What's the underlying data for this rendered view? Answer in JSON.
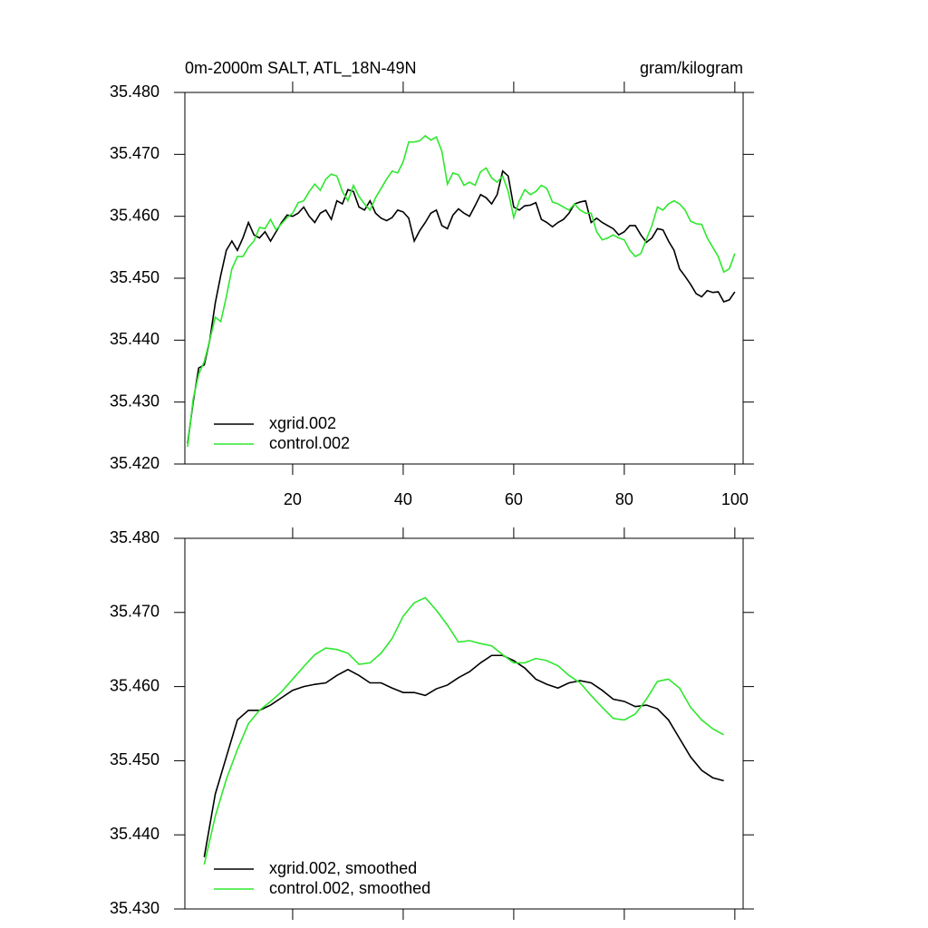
{
  "chart_data": [
    {
      "type": "line",
      "title": "0m-2000m SALT, ATL_18N-49N",
      "units": "gram/kilogram",
      "x": [
        1,
        2,
        3,
        4,
        5,
        6,
        7,
        8,
        9,
        10,
        11,
        12,
        13,
        14,
        15,
        16,
        17,
        18,
        19,
        20,
        21,
        22,
        23,
        24,
        25,
        26,
        27,
        28,
        29,
        30,
        31,
        32,
        33,
        34,
        35,
        36,
        37,
        38,
        39,
        40,
        41,
        42,
        43,
        44,
        45,
        46,
        47,
        48,
        49,
        50,
        51,
        52,
        53,
        54,
        55,
        56,
        57,
        58,
        59,
        60,
        61,
        62,
        63,
        64,
        65,
        66,
        67,
        68,
        69,
        70,
        71,
        72,
        73,
        74,
        75,
        76,
        77,
        78,
        79,
        80,
        81,
        82,
        83,
        84,
        85,
        86,
        87,
        88,
        89,
        90,
        91,
        92,
        93,
        94,
        95,
        96,
        97,
        98,
        99,
        100
      ],
      "series": [
        {
          "name": "xgrid.002",
          "color": "#000000",
          "values": [
            35.4233,
            35.43,
            35.4355,
            35.436,
            35.44,
            35.446,
            35.4505,
            35.4545,
            35.456,
            35.4545,
            35.4565,
            35.459,
            35.457,
            35.4565,
            35.4575,
            35.456,
            35.4575,
            35.459,
            35.4602,
            35.46,
            35.4605,
            35.4615,
            35.46,
            35.459,
            35.4605,
            35.461,
            35.4595,
            35.4625,
            35.462,
            35.4643,
            35.464,
            35.4615,
            35.461,
            35.4625,
            35.4605,
            35.4597,
            35.4593,
            35.4598,
            35.461,
            35.4607,
            35.4597,
            35.456,
            35.4577,
            35.459,
            35.4605,
            35.461,
            35.4585,
            35.458,
            35.4602,
            35.4612,
            35.4605,
            35.46,
            35.4617,
            35.4635,
            35.463,
            35.462,
            35.4635,
            35.4673,
            35.4665,
            35.4615,
            35.461,
            35.4617,
            35.4618,
            35.4622,
            35.4595,
            35.459,
            35.4583,
            35.459,
            35.4595,
            35.4605,
            35.462,
            35.4623,
            35.4625,
            35.459,
            35.4597,
            35.459,
            35.4585,
            35.458,
            35.457,
            35.4575,
            35.4585,
            35.4585,
            35.457,
            35.4558,
            35.4565,
            35.458,
            35.4578,
            35.456,
            35.4545,
            35.4515,
            35.4503,
            35.449,
            35.4475,
            35.447,
            35.448,
            35.4477,
            35.4478,
            35.4462,
            35.4465,
            35.4478
          ]
        },
        {
          "name": "control.002",
          "color": "#2ee82e",
          "values": [
            35.4228,
            35.4305,
            35.4345,
            35.4365,
            35.44,
            35.4437,
            35.443,
            35.447,
            35.4515,
            35.4535,
            35.4535,
            35.455,
            35.456,
            35.4582,
            35.458,
            35.4595,
            35.4578,
            35.4588,
            35.4598,
            35.4605,
            35.4622,
            35.4625,
            35.464,
            35.4652,
            35.4642,
            35.466,
            35.4668,
            35.4665,
            35.464,
            35.4625,
            35.465,
            35.4632,
            35.462,
            35.461,
            35.463,
            35.4645,
            35.466,
            35.4673,
            35.467,
            35.4688,
            35.472,
            35.472,
            35.4722,
            35.473,
            35.4723,
            35.4728,
            35.4705,
            35.4652,
            35.467,
            35.4667,
            35.465,
            35.4655,
            35.465,
            35.4672,
            35.4678,
            35.4662,
            35.4655,
            35.4665,
            35.464,
            35.4598,
            35.4625,
            35.4643,
            35.4635,
            35.464,
            35.465,
            35.4645,
            35.4623,
            35.462,
            35.4615,
            35.461,
            35.462,
            35.461,
            35.4605,
            35.4605,
            35.4575,
            35.4562,
            35.4565,
            35.457,
            35.4565,
            35.4562,
            35.4545,
            35.4535,
            35.454,
            35.4563,
            35.4585,
            35.4615,
            35.461,
            35.462,
            35.4625,
            35.462,
            35.461,
            35.4592,
            35.4588,
            35.4587,
            35.4565,
            35.455,
            35.4535,
            35.451,
            35.4515,
            35.454
          ]
        }
      ],
      "xlim": [
        0.5,
        101.5
      ],
      "xticks": [
        20,
        40,
        60,
        80,
        100
      ],
      "xtick_labels": true,
      "ylim": [
        35.42,
        35.48
      ],
      "yticks": [
        {
          "value": 35.42,
          "label": "35.420"
        },
        {
          "value": 35.43,
          "label": "35.430"
        },
        {
          "value": 35.44,
          "label": "35.440"
        },
        {
          "value": 35.45,
          "label": "35.450"
        },
        {
          "value": 35.46,
          "label": "35.460"
        },
        {
          "value": 35.47,
          "label": "35.470"
        },
        {
          "value": 35.48,
          "label": "35.480"
        }
      ],
      "legend": "lower left"
    },
    {
      "type": "line",
      "x": [
        4,
        6,
        8,
        10,
        12,
        14,
        16,
        18,
        20,
        22,
        24,
        26,
        28,
        30,
        32,
        34,
        36,
        38,
        40,
        42,
        44,
        46,
        48,
        50,
        52,
        54,
        56,
        58,
        60,
        62,
        64,
        66,
        68,
        70,
        72,
        74,
        76,
        78,
        80,
        82,
        84,
        86,
        88,
        90,
        92,
        94,
        96,
        98
      ],
      "series": [
        {
          "name": "xgrid.002, smoothed",
          "color": "#000000",
          "values": [
            35.437,
            35.4455,
            35.4505,
            35.4555,
            35.4568,
            35.4568,
            35.4575,
            35.4585,
            35.4595,
            35.46,
            35.4603,
            35.4605,
            35.4615,
            35.4623,
            35.4615,
            35.4605,
            35.4605,
            35.4598,
            35.4592,
            35.4592,
            35.4588,
            35.4597,
            35.4602,
            35.4612,
            35.462,
            35.4632,
            35.4642,
            35.4642,
            35.4635,
            35.4625,
            35.461,
            35.4603,
            35.4598,
            35.4605,
            35.4608,
            35.4605,
            35.4595,
            35.4583,
            35.458,
            35.4573,
            35.4575,
            35.457,
            35.4555,
            35.453,
            35.4505,
            35.4487,
            35.4477,
            35.4473
          ]
        },
        {
          "name": "control.002, smoothed",
          "color": "#2ee82e",
          "values": [
            35.436,
            35.4425,
            35.4475,
            35.4515,
            35.455,
            35.4568,
            35.458,
            35.4593,
            35.461,
            35.4627,
            35.4643,
            35.4652,
            35.465,
            35.4645,
            35.463,
            35.4632,
            35.4645,
            35.4665,
            35.4695,
            35.4713,
            35.472,
            35.4703,
            35.4683,
            35.466,
            35.4662,
            35.4658,
            35.4655,
            35.4643,
            35.4632,
            35.4632,
            35.4638,
            35.4635,
            35.4628,
            35.4615,
            35.4605,
            35.4588,
            35.4572,
            35.4557,
            35.4555,
            35.4563,
            35.4583,
            35.4607,
            35.461,
            35.4598,
            35.4572,
            35.4555,
            35.4543,
            35.4535
          ]
        }
      ],
      "xlim": [
        0.5,
        101.5
      ],
      "xticks": [
        20,
        40,
        60,
        80,
        100
      ],
      "xtick_labels": false,
      "ylim": [
        35.43,
        35.48
      ],
      "yticks": [
        {
          "value": 35.43,
          "label": "35.430"
        },
        {
          "value": 35.44,
          "label": "35.440"
        },
        {
          "value": 35.45,
          "label": "35.450"
        },
        {
          "value": 35.46,
          "label": "35.460"
        },
        {
          "value": 35.47,
          "label": "35.470"
        },
        {
          "value": 35.48,
          "label": "35.480"
        }
      ],
      "legend": "lower left"
    }
  ]
}
